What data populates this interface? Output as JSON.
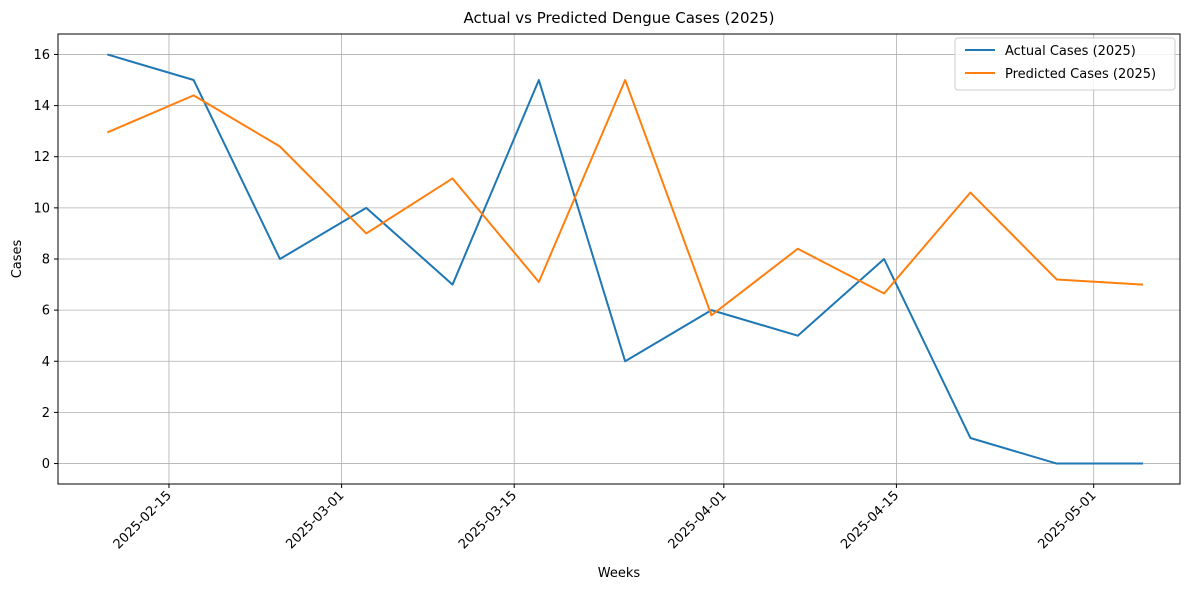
{
  "chart_data": {
    "type": "line",
    "title": "Actual vs Predicted Dengue Cases (2025)",
    "xlabel": "Weeks",
    "ylabel": "Cases",
    "x_type": "date",
    "xlim": [
      "2025-02-06",
      "2025-05-08"
    ],
    "ylim": [
      -0.8,
      16.8
    ],
    "x": [
      "2025-02-10",
      "2025-02-17",
      "2025-02-24",
      "2025-03-03",
      "2025-03-10",
      "2025-03-17",
      "2025-03-24",
      "2025-03-31",
      "2025-04-07",
      "2025-04-14",
      "2025-04-21",
      "2025-04-28",
      "2025-05-05"
    ],
    "x_ticks": [
      "2025-02-15",
      "2025-03-01",
      "2025-03-15",
      "2025-04-01",
      "2025-04-15",
      "2025-05-01"
    ],
    "y_ticks": [
      0,
      2,
      4,
      6,
      8,
      10,
      12,
      14,
      16
    ],
    "grid": true,
    "legend_position": "top-right",
    "series": [
      {
        "name": "Actual Cases (2025)",
        "color": "#1f77b4",
        "values": [
          16,
          15,
          8,
          10,
          7,
          15,
          4,
          6,
          5,
          8,
          1,
          0,
          0
        ]
      },
      {
        "name": "Predicted Cases (2025)",
        "color": "#ff7f0e",
        "values": [
          12.95,
          14.4,
          12.4,
          9.0,
          11.15,
          7.1,
          15.0,
          5.8,
          8.4,
          6.65,
          10.6,
          7.2,
          7.0
        ]
      }
    ]
  }
}
